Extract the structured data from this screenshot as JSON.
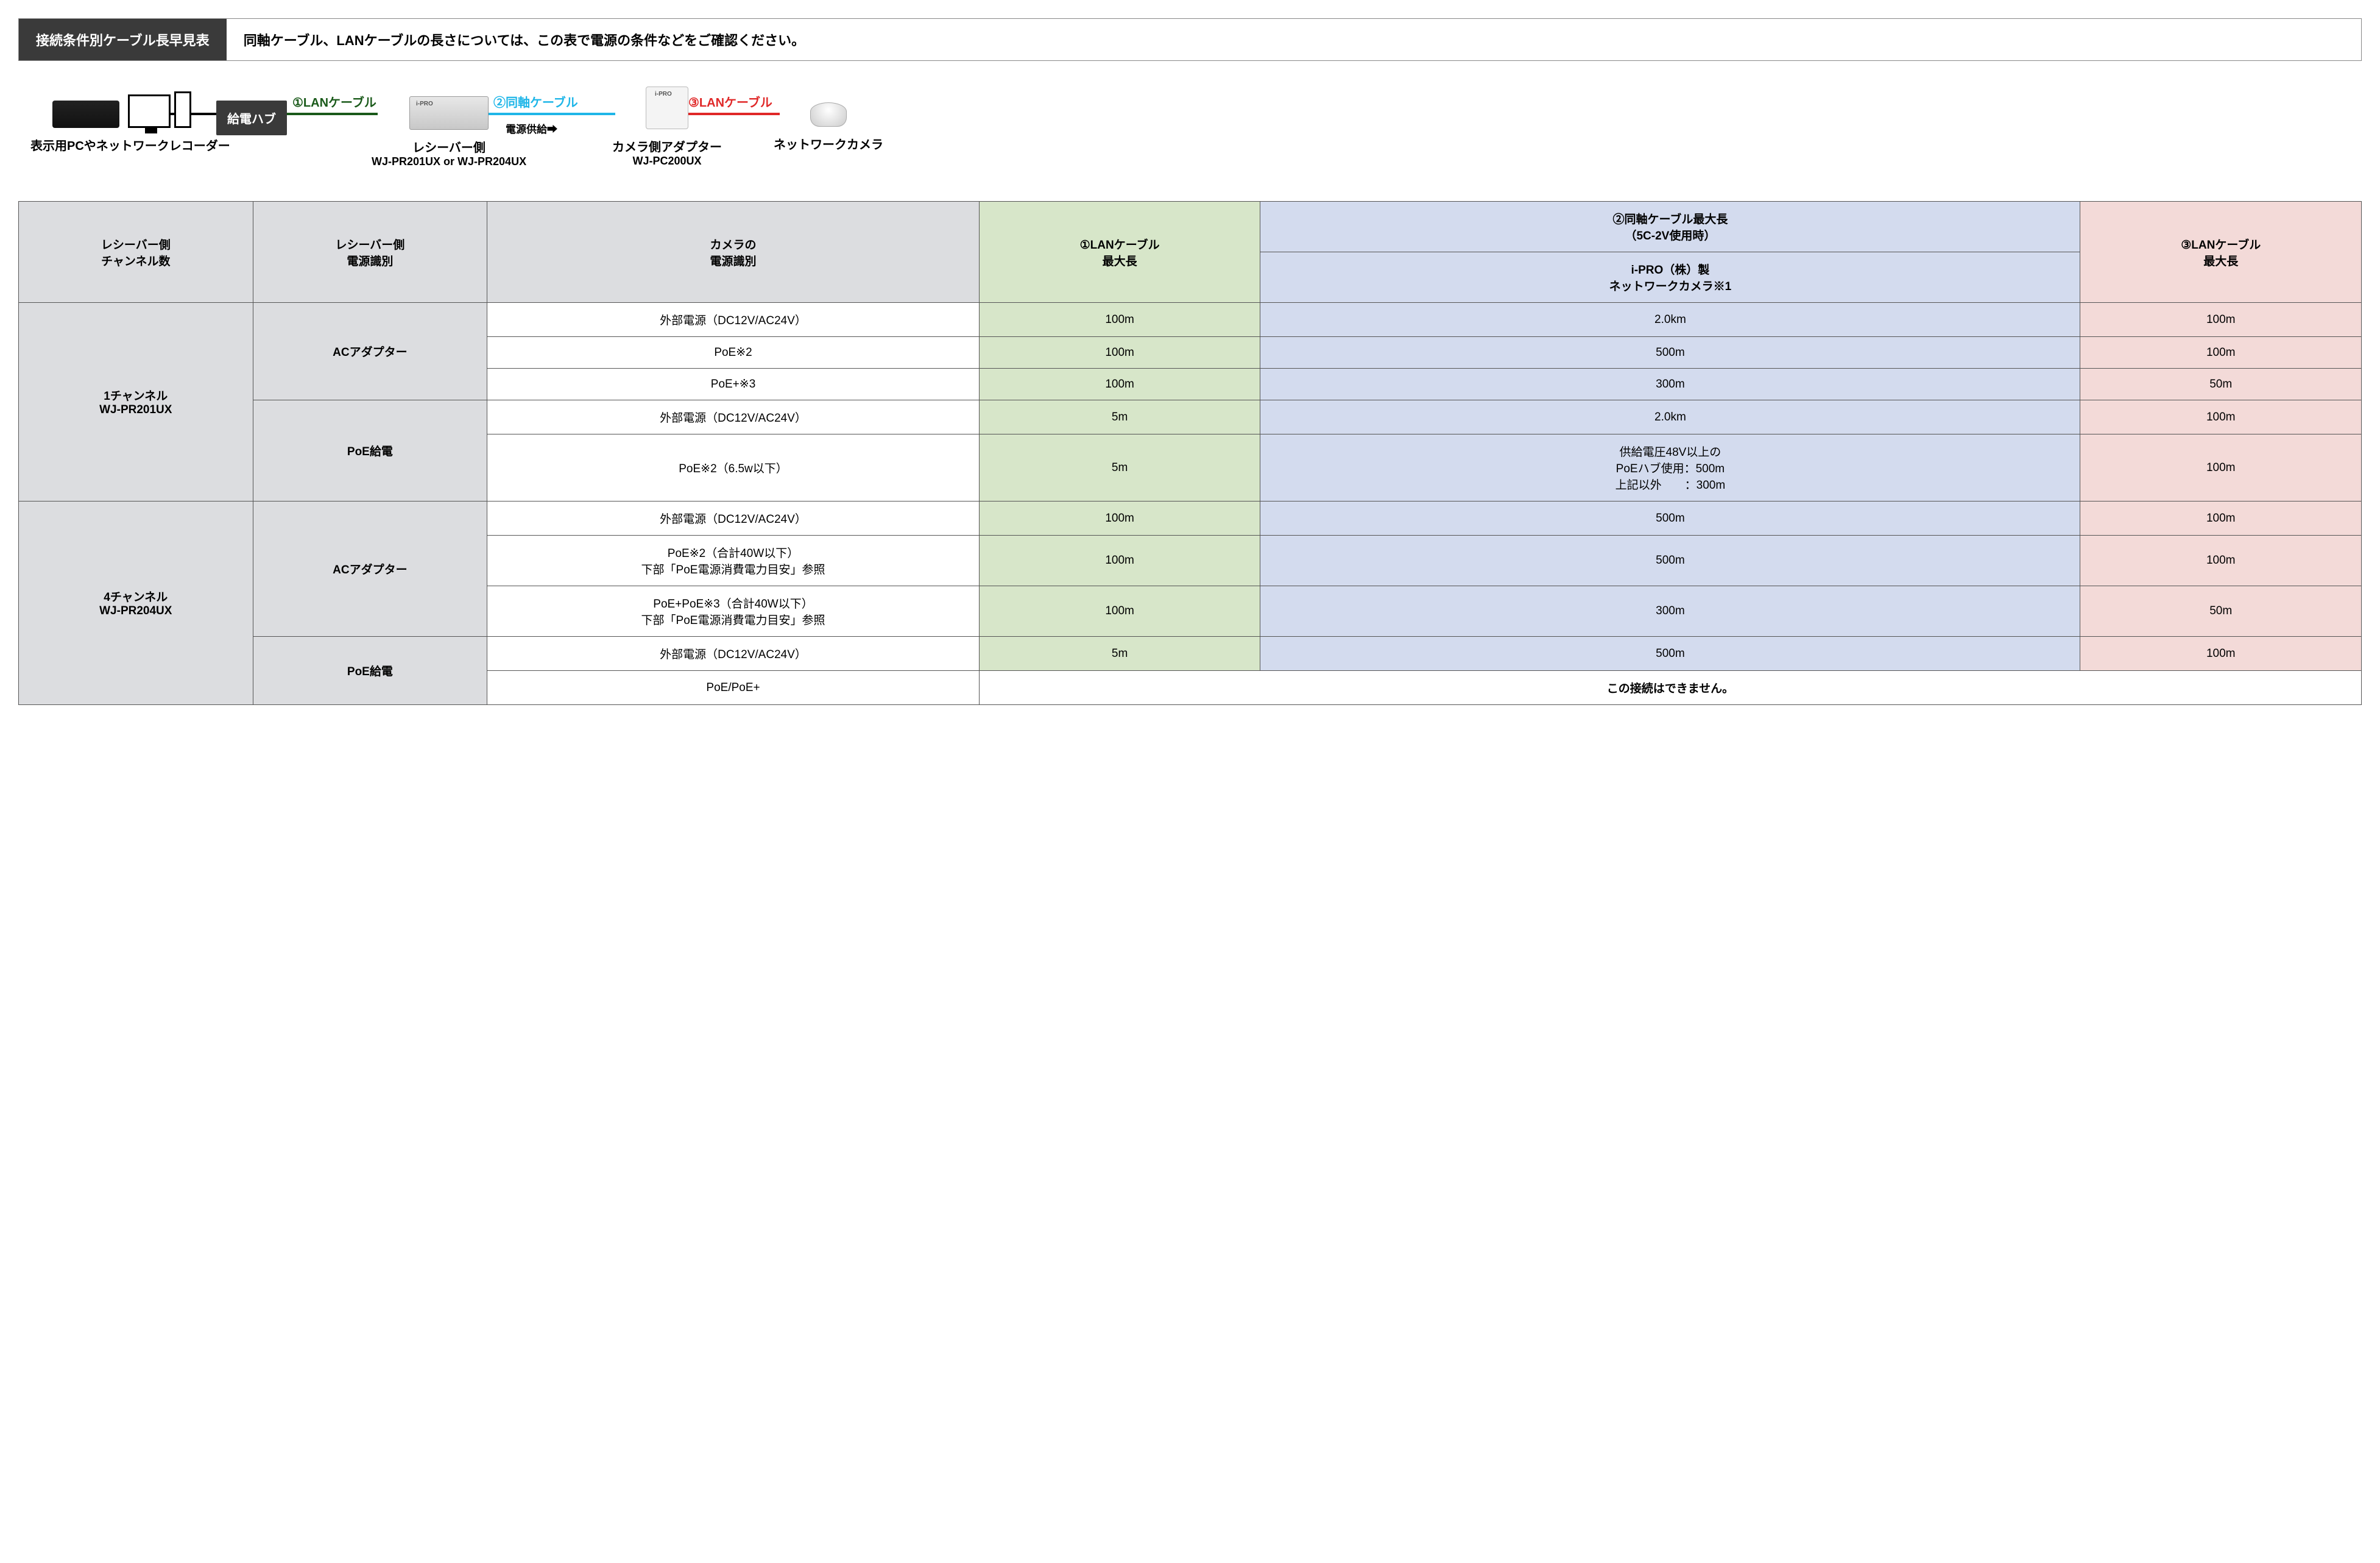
{
  "colors": {
    "header_bg": "#3a3a3a",
    "grey": "#dcdde0",
    "green": "#d7e6c9",
    "blue": "#d3dbee",
    "pink": "#f3dad8",
    "lan1": "#1a5a1a",
    "coax": "#1fb6e8",
    "lan2": "#e02828"
  },
  "header": {
    "title": "接続条件別ケーブル長早見表",
    "description": "同軸ケーブル、LANケーブルの長さについては、この表で電源の条件などをご確認ください。"
  },
  "diagram": {
    "hub_label": "給電ハブ",
    "cable1_label": "①LANケーブル",
    "cable2_label": "②同軸ケーブル",
    "cable3_label": "③LANケーブル",
    "power_supply_label": "電源供給➡",
    "dev_pc_label": "表示用PCやネットワークレコーダー",
    "dev_recv_label1": "レシーバー側",
    "dev_recv_label2": "WJ-PR201UX or WJ-PR204UX",
    "dev_adapter_label1": "カメラ側アダプター",
    "dev_adapter_label2": "WJ-PC200UX",
    "dev_cam_label": "ネットワークカメラ"
  },
  "table": {
    "headers": {
      "col1": "レシーバー側\nチャンネル数",
      "col2": "レシーバー側\n電源識別",
      "col3": "カメラの\n電源識別",
      "col4": "①LANケーブル\n最大長",
      "col5_top": "②同軸ケーブル最大長\n（5C-2V使用時）",
      "col5_sub": "i-PRO（株）製\nネットワークカメラ※1",
      "col6": "③LANケーブル\n最大長"
    },
    "groups": [
      {
        "channel": "1チャンネル\nWJ-PR201UX",
        "power_groups": [
          {
            "power": "ACアダプター",
            "rows": [
              {
                "cam": "外部電源（DC12V/AC24V）",
                "lan1": "100m",
                "coax": "2.0km",
                "lan2": "100m"
              },
              {
                "cam": "PoE※2",
                "lan1": "100m",
                "coax": "500m",
                "lan2": "100m"
              },
              {
                "cam": "PoE+※3",
                "lan1": "100m",
                "coax": "300m",
                "lan2": "50m"
              }
            ]
          },
          {
            "power": "PoE給電",
            "rows": [
              {
                "cam": "外部電源（DC12V/AC24V）",
                "lan1": "5m",
                "coax": "2.0km",
                "lan2": "100m"
              },
              {
                "cam": "PoE※2（6.5w以下）",
                "lan1": "5m",
                "coax": "供給電圧48V以上の\nPoEハブ使用：500m\n上記以外　　：300m",
                "lan2": "100m"
              }
            ]
          }
        ]
      },
      {
        "channel": "4チャンネル\nWJ-PR204UX",
        "power_groups": [
          {
            "power": "ACアダプター",
            "rows": [
              {
                "cam": "外部電源（DC12V/AC24V）",
                "lan1": "100m",
                "coax": "500m",
                "lan2": "100m"
              },
              {
                "cam": "PoE※2（合計40W以下）\n下部「PoE電源消費電力目安」参照",
                "lan1": "100m",
                "coax": "500m",
                "lan2": "100m"
              },
              {
                "cam": "PoE+PoE※3（合計40W以下）\n下部「PoE電源消費電力目安」参照",
                "lan1": "100m",
                "coax": "300m",
                "lan2": "50m"
              }
            ]
          },
          {
            "power": "PoE給電",
            "rows": [
              {
                "cam": "外部電源（DC12V/AC24V）",
                "lan1": "5m",
                "coax": "500m",
                "lan2": "100m"
              },
              {
                "cam": "PoE/PoE+",
                "merged": "この接続はできません。"
              }
            ]
          }
        ]
      }
    ]
  }
}
